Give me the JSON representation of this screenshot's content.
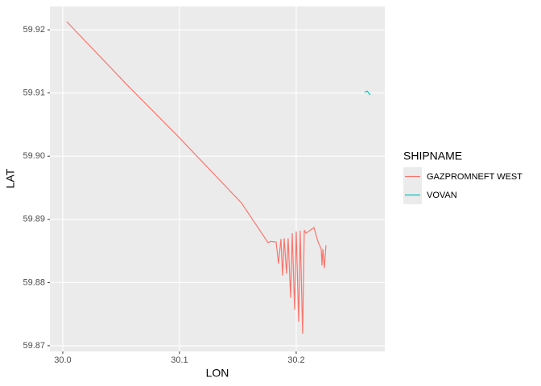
{
  "chart_data": {
    "type": "line",
    "x_label": "LON",
    "y_label": "LAT",
    "legend_title": "SHIPNAME",
    "xlim": [
      29.989,
      30.2759
    ],
    "ylim": [
      59.8691,
      59.9237
    ],
    "xticks": [
      {
        "value": 30.0,
        "label": "30.0"
      },
      30.1,
      30.2
    ],
    "yticks": [
      59.87,
      59.88,
      59.89,
      {
        "value": 59.9,
        "label": "59.90"
      },
      59.91,
      59.92
    ],
    "grid": true,
    "legend": "right",
    "series": [
      {
        "name": "GAZPROMNEFT WEST",
        "color": "#F8766D",
        "x": [
          30.0034,
          30.0566,
          30.0979,
          30.1531,
          30.1759,
          30.1779,
          30.1828,
          30.1848,
          30.1869,
          30.1883,
          30.1897,
          30.1917,
          30.1931,
          30.1952,
          30.1966,
          30.1986,
          30.2,
          30.2021,
          30.2034,
          30.2055,
          30.2069,
          30.2083,
          30.2152,
          30.2186,
          30.2214,
          30.2221,
          30.2228,
          30.2241,
          30.2255
        ],
        "values": [
          59.9213,
          59.911,
          59.9033,
          59.8926,
          59.8863,
          59.8865,
          59.8864,
          59.883,
          59.8869,
          59.8811,
          59.887,
          59.8814,
          59.887,
          59.8776,
          59.8878,
          59.8757,
          59.8881,
          59.8738,
          59.8882,
          59.8719,
          59.8883,
          59.8878,
          59.8887,
          59.8865,
          59.8853,
          59.8827,
          59.8853,
          59.8823,
          59.8859
        ]
      },
      {
        "name": "VOVAN",
        "color": "#00BFC4",
        "x": [
          30.2586,
          30.2607,
          30.2634
        ],
        "values": [
          59.9101,
          59.9103,
          59.9097
        ]
      }
    ]
  }
}
